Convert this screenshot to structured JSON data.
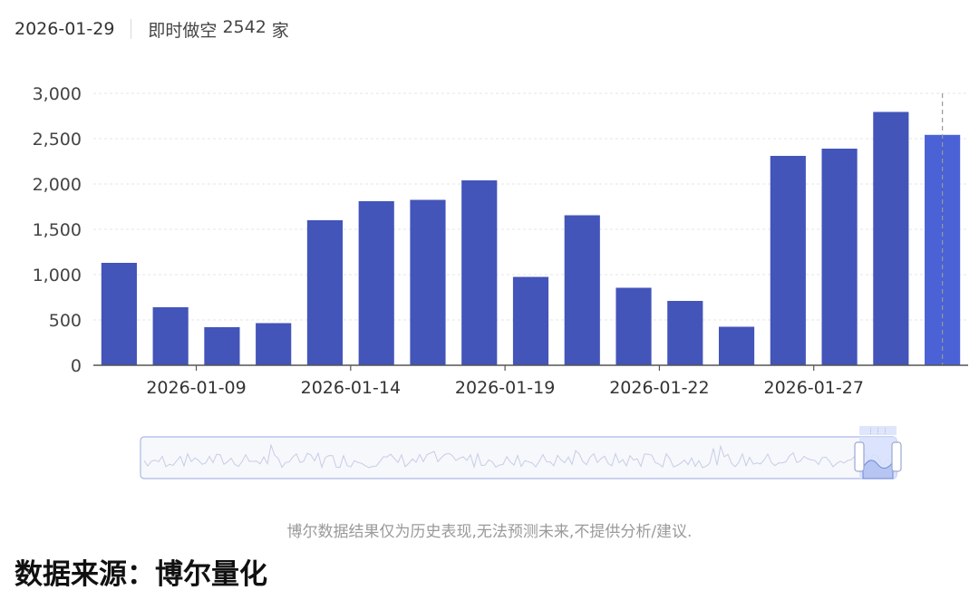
{
  "header": {
    "date": "2026-01-29",
    "stat_label": "即时做空",
    "stat_value": "2542",
    "stat_unit": "家"
  },
  "colors": {
    "bar": "#4355b9",
    "bar_highlight": "#4a62d6",
    "grid": "#e6e6e6",
    "axis": "#555555",
    "slider_fill": "#d6e0fb",
    "slider_border": "#aab8e6"
  },
  "chart_data": {
    "type": "bar",
    "x_tick_labels": [
      "2026-01-09",
      "2026-01-14",
      "2026-01-19",
      "2026-01-22",
      "2026-01-27"
    ],
    "y_tick_labels": [
      "0",
      "500",
      "1,000",
      "1,500",
      "2,000",
      "2,500",
      "3,000"
    ],
    "values": [
      1130,
      640,
      420,
      465,
      1600,
      1810,
      1825,
      2040,
      975,
      1655,
      855,
      710,
      425,
      2310,
      2390,
      2795,
      2542
    ],
    "highlight_index": 16,
    "ylim": [
      0,
      3000
    ],
    "grid": true,
    "dataZoom": true
  },
  "footer": {
    "disclaimer": "博尔数据结果仅为历史表现,无法预测未来,不提供分析/建议.",
    "source": "数据来源：博尔量化"
  }
}
